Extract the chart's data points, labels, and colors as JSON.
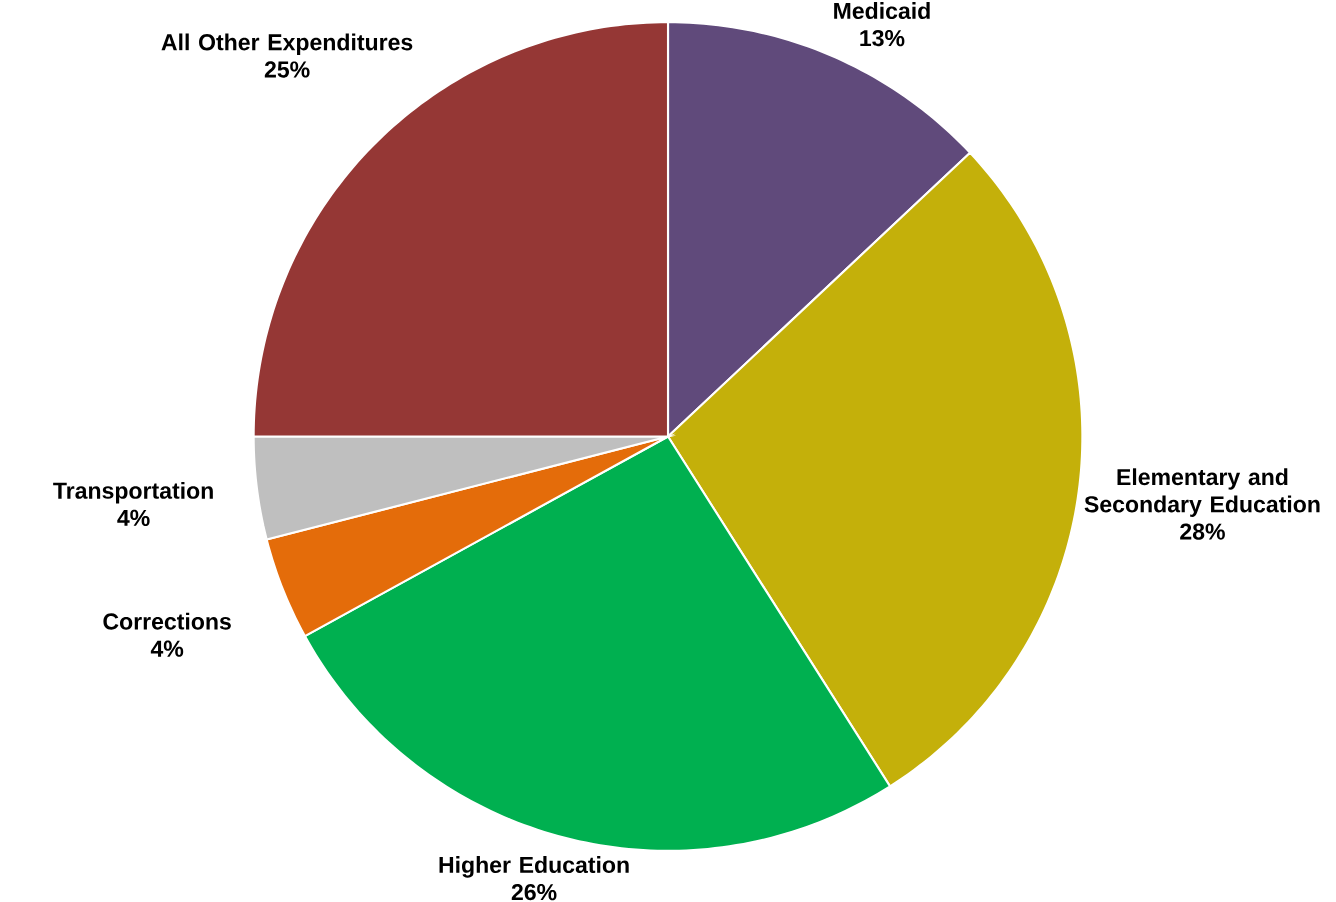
{
  "chart_data": {
    "type": "pie",
    "categories": [
      "Medicaid",
      "Elementary and Secondary Education",
      "Higher Education",
      "Corrections",
      "Transportation",
      "All Other Expenditures"
    ],
    "values": [
      13,
      28,
      26,
      4,
      4,
      25
    ],
    "colors": [
      "#604a7b",
      "#c4b00a",
      "#00b050",
      "#e46c0a",
      "#bfbfbf",
      "#953735"
    ],
    "value_labels": [
      "13%",
      "28%",
      "26%",
      "4%",
      "4%",
      "25%"
    ]
  }
}
